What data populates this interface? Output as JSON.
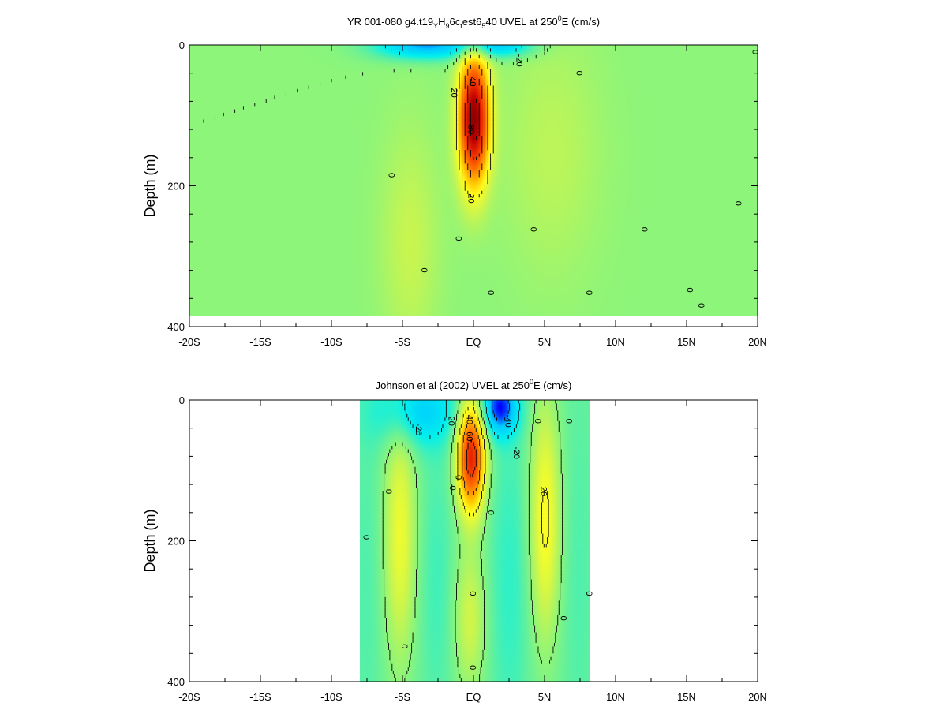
{
  "chart_data": [
    {
      "type": "heatmap",
      "title_parts": [
        {
          "t": "YR 001-080 g4.t19",
          "s": ""
        },
        {
          "t": "Y",
          "s": "sub"
        },
        {
          "t": "H",
          "s": ""
        },
        {
          "t": "9",
          "s": "sub"
        },
        {
          "t": "6c",
          "s": ""
        },
        {
          "t": "t",
          "s": "sub"
        },
        {
          "t": "est6",
          "s": ""
        },
        {
          "t": "5",
          "s": "sub"
        },
        {
          "t": "40 UVEL at 250",
          "s": ""
        },
        {
          "t": "0",
          "s": "sup"
        },
        {
          "t": "E (cm/s)",
          "s": ""
        }
      ],
      "ylabel": "Depth (m)",
      "x_range": [
        -20,
        20
      ],
      "y_range": [
        0,
        400
      ],
      "y_reversed": true,
      "x_ticks": [
        {
          "v": -20,
          "label": "-20S"
        },
        {
          "v": -15,
          "label": "-15S"
        },
        {
          "v": -10,
          "label": "-10S"
        },
        {
          "v": -5,
          "label": "-5S"
        },
        {
          "v": 0,
          "label": "EQ"
        },
        {
          "v": 5,
          "label": "5N"
        },
        {
          "v": 10,
          "label": "10N"
        },
        {
          "v": 15,
          "label": "15N"
        },
        {
          "v": 20,
          "label": "20N"
        }
      ],
      "y_ticks": [
        {
          "v": 0,
          "label": "0"
        },
        {
          "v": 200,
          "label": "200"
        },
        {
          "v": 400,
          "label": "400"
        }
      ],
      "data_extent": {
        "x": [
          -20,
          20
        ],
        "depth": [
          0,
          385
        ]
      },
      "background_value": 0,
      "features": [
        {
          "kind": "undercurrent",
          "lat": 0.0,
          "depth": 105,
          "peak": 88,
          "sx": 0.75,
          "sy": 65
        },
        {
          "kind": "surface-westward",
          "lat": -3.5,
          "depth": 0,
          "peak": -38,
          "sx": 2.5,
          "sy": 14
        },
        {
          "kind": "surface-westward",
          "lat": 1.8,
          "depth": 0,
          "peak": -30,
          "sx": 1.8,
          "sy": 12
        },
        {
          "kind": "broad-positive",
          "lat": 5.5,
          "depth": 150,
          "peak": 8,
          "sx": 2.5,
          "sy": 130
        },
        {
          "kind": "broad-positive",
          "lat": -4.5,
          "depth": 280,
          "peak": 10,
          "sx": 1.5,
          "sy": 120
        }
      ],
      "contour_labels": [
        {
          "lat": -0.2,
          "depth": 120,
          "text": "80"
        },
        {
          "lat": -0.1,
          "depth": 52,
          "text": "40"
        },
        {
          "lat": -1.4,
          "depth": 68,
          "text": "20"
        },
        {
          "lat": -0.2,
          "depth": 218,
          "text": "20"
        },
        {
          "lat": 3.2,
          "depth": 22,
          "text": "-20"
        },
        {
          "lat": -5.8,
          "depth": 185,
          "text": "0"
        },
        {
          "lat": -1.1,
          "depth": 275,
          "text": "0"
        },
        {
          "lat": -3.5,
          "depth": 320,
          "text": "0"
        },
        {
          "lat": 1.2,
          "depth": 352,
          "text": "0"
        },
        {
          "lat": 4.2,
          "depth": 262,
          "text": "0"
        },
        {
          "lat": 7.4,
          "depth": 40,
          "text": "0"
        },
        {
          "lat": 8.1,
          "depth": 352,
          "text": "0"
        },
        {
          "lat": 12.0,
          "depth": 262,
          "text": "0"
        },
        {
          "lat": 15.2,
          "depth": 348,
          "text": "0"
        },
        {
          "lat": 16.0,
          "depth": 370,
          "text": "0"
        },
        {
          "lat": 18.6,
          "depth": 225,
          "text": "0"
        },
        {
          "lat": 19.8,
          "depth": 10,
          "text": "0"
        }
      ]
    },
    {
      "type": "heatmap",
      "title_parts": [
        {
          "t": "Johnson et al (2002) UVEL at 250",
          "s": ""
        },
        {
          "t": "0",
          "s": "sup"
        },
        {
          "t": "E (cm/s)",
          "s": ""
        }
      ],
      "ylabel": "Depth (m)",
      "x_range": [
        -20,
        20
      ],
      "y_range": [
        0,
        400
      ],
      "y_reversed": true,
      "x_ticks": [
        {
          "v": -20,
          "label": "-20S"
        },
        {
          "v": -15,
          "label": "-15S"
        },
        {
          "v": -10,
          "label": "-10S"
        },
        {
          "v": -5,
          "label": "-5S"
        },
        {
          "v": 0,
          "label": "EQ"
        },
        {
          "v": 5,
          "label": "5N"
        },
        {
          "v": 10,
          "label": "10N"
        },
        {
          "v": 15,
          "label": "15N"
        },
        {
          "v": 20,
          "label": "20N"
        }
      ],
      "y_ticks": [
        {
          "v": 0,
          "label": "0"
        },
        {
          "v": 200,
          "label": "200"
        },
        {
          "v": 400,
          "label": "400"
        }
      ],
      "data_extent": {
        "x": [
          -8,
          8.2
        ],
        "depth": [
          0,
          400
        ]
      },
      "background_value": -6,
      "features": [
        {
          "kind": "undercurrent",
          "lat": -0.2,
          "depth": 80,
          "peak": 75,
          "sx": 0.7,
          "sy": 55
        },
        {
          "kind": "surface-westward",
          "lat": -4.0,
          "depth": 15,
          "peak": -25,
          "sx": 2.0,
          "sy": 35
        },
        {
          "kind": "surface-westward",
          "lat": 1.8,
          "depth": 10,
          "peak": -42,
          "sx": 0.9,
          "sy": 28
        },
        {
          "kind": "tsucc",
          "lat": -5.2,
          "depth": 190,
          "peak": 24,
          "sx": 0.8,
          "sy": 130
        },
        {
          "kind": "tsucc",
          "lat": 5.0,
          "depth": 170,
          "peak": 28,
          "sx": 0.75,
          "sy": 120
        },
        {
          "kind": "deep-positive",
          "lat": -0.3,
          "depth": 310,
          "peak": 18,
          "sx": 0.8,
          "sy": 75
        },
        {
          "kind": "flank-negative",
          "lat": -2.6,
          "depth": 260,
          "peak": -6,
          "sx": 0.9,
          "sy": 140
        },
        {
          "kind": "flank-negative",
          "lat": 2.5,
          "depth": 260,
          "peak": -8,
          "sx": 1.0,
          "sy": 160
        },
        {
          "kind": "outer-negative",
          "lat": -7.5,
          "depth": 250,
          "peak": -4,
          "sx": 0.8,
          "sy": 200
        },
        {
          "kind": "outer-negative",
          "lat": 7.3,
          "depth": 250,
          "peak": -4,
          "sx": 0.8,
          "sy": 200
        }
      ],
      "contour_labels": [
        {
          "lat": -0.3,
          "depth": 28,
          "text": "40"
        },
        {
          "lat": -0.3,
          "depth": 52,
          "text": "60"
        },
        {
          "lat": -1.6,
          "depth": 30,
          "text": "20"
        },
        {
          "lat": -3.9,
          "depth": 42,
          "text": "-20"
        },
        {
          "lat": 2.4,
          "depth": 30,
          "text": "-40"
        },
        {
          "lat": 3.0,
          "depth": 75,
          "text": "-20"
        },
        {
          "lat": 4.9,
          "depth": 130,
          "text": "20"
        },
        {
          "lat": -1.1,
          "depth": 110,
          "text": "0"
        },
        {
          "lat": -1.5,
          "depth": 125,
          "text": "0"
        },
        {
          "lat": 1.2,
          "depth": 160,
          "text": "0"
        },
        {
          "lat": -7.6,
          "depth": 195,
          "text": "0"
        },
        {
          "lat": -6.0,
          "depth": 130,
          "text": "0"
        },
        {
          "lat": -4.9,
          "depth": 350,
          "text": "0"
        },
        {
          "lat": -0.1,
          "depth": 275,
          "text": "0"
        },
        {
          "lat": -0.1,
          "depth": 380,
          "text": "0"
        },
        {
          "lat": 6.7,
          "depth": 30,
          "text": "0"
        },
        {
          "lat": 6.3,
          "depth": 310,
          "text": "0"
        },
        {
          "lat": 8.1,
          "depth": 275,
          "text": "0"
        },
        {
          "lat": 4.5,
          "depth": 30,
          "text": "0"
        }
      ]
    }
  ],
  "colorscale": {
    "vmin": -50,
    "vmax": 90,
    "stops": [
      {
        "v": -50,
        "c": "#0000ff"
      },
      {
        "v": -35,
        "c": "#00c8ff"
      },
      {
        "v": -20,
        "c": "#00f0ee"
      },
      {
        "v": -8,
        "c": "#5ef0a0"
      },
      {
        "v": 0,
        "c": "#8cf57a"
      },
      {
        "v": 10,
        "c": "#c8f550"
      },
      {
        "v": 22,
        "c": "#ffff20"
      },
      {
        "v": 35,
        "c": "#ffc000"
      },
      {
        "v": 50,
        "c": "#ff7000"
      },
      {
        "v": 65,
        "c": "#f03000"
      },
      {
        "v": 80,
        "c": "#c00000"
      },
      {
        "v": 90,
        "c": "#8a0000"
      }
    ]
  }
}
